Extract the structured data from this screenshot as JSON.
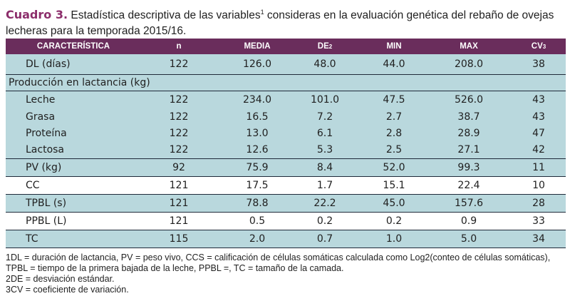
{
  "caption": {
    "label": "Cuadro 3.",
    "text": " Estadística descriptiva de las variables",
    "sup": "1",
    "text_rest": " consideras en la evaluación genética del rebaño de ovejas lecheras para la temporada 2015/16."
  },
  "table": {
    "headers": [
      "CARACTERÍSTICA",
      "n",
      "MEDIA",
      "DE",
      "MIN",
      "MAX",
      "CV"
    ],
    "header_sup": {
      "de": "2",
      "cv": "3"
    },
    "rows_top": [
      {
        "name": "DL (días)",
        "n": "122",
        "media": "126.0",
        "de": "48.0",
        "min": "44.0",
        "max": "208.0",
        "cv": "38"
      }
    ],
    "section_label": "Producción en lactancia (kg)",
    "rows_section": [
      {
        "name": "Leche",
        "n": "122",
        "media": "234.0",
        "de": "101.0",
        "min": "47.5",
        "max": "526.0",
        "cv": "43"
      },
      {
        "name": "Grasa",
        "n": "122",
        "media": "16.5",
        "de": "7.2",
        "min": "2.7",
        "max": "38.7",
        "cv": "43"
      },
      {
        "name": "Proteína",
        "n": "122",
        "media": "13.0",
        "de": "6.1",
        "min": "2.8",
        "max": "28.9",
        "cv": "47"
      },
      {
        "name": "Lactosa",
        "n": "122",
        "media": "12.6",
        "de": "5.3",
        "min": "2.5",
        "max": "27.1",
        "cv": "42"
      }
    ],
    "rows_bottom": [
      {
        "name": "PV (kg)",
        "n": "92",
        "media": "75.9",
        "de": "8.4",
        "min": "52.0",
        "max": "99.3",
        "cv": "11"
      },
      {
        "name": "CC",
        "n": "121",
        "media": "17.5",
        "de": "1.7",
        "min": "15.1",
        "max": "22.4",
        "cv": "10"
      },
      {
        "name": "TPBL (s)",
        "n": "121",
        "media": "78.8",
        "de": "22.2",
        "min": "45.0",
        "max": "157.6",
        "cv": "28"
      },
      {
        "name": "PPBL (L)",
        "n": "121",
        "media": "0.5",
        "de": "0.2",
        "min": "0.2",
        "max": "0.9",
        "cv": "33"
      },
      {
        "name": "TC",
        "n": "115",
        "media": "2.0",
        "de": "0.7",
        "min": "1.0",
        "max": "5.0",
        "cv": "34"
      }
    ]
  },
  "notes": [
    "1DL = duración de lactancia, PV = peso vivo, CCS = calificación de células somáticas calculada como Log2(conteo de células somáticas), TPBL = tiempo de la primera bajada de la leche, PPBL =, TC = tamaño de la camada.",
    "2DE = desviación estándar.",
    "3CV = coeficiente de variación."
  ],
  "colors": {
    "header_bg": "#6a2d5c",
    "stripe_bg": "#b9d8dd",
    "caption_label": "#8c2e6b"
  }
}
